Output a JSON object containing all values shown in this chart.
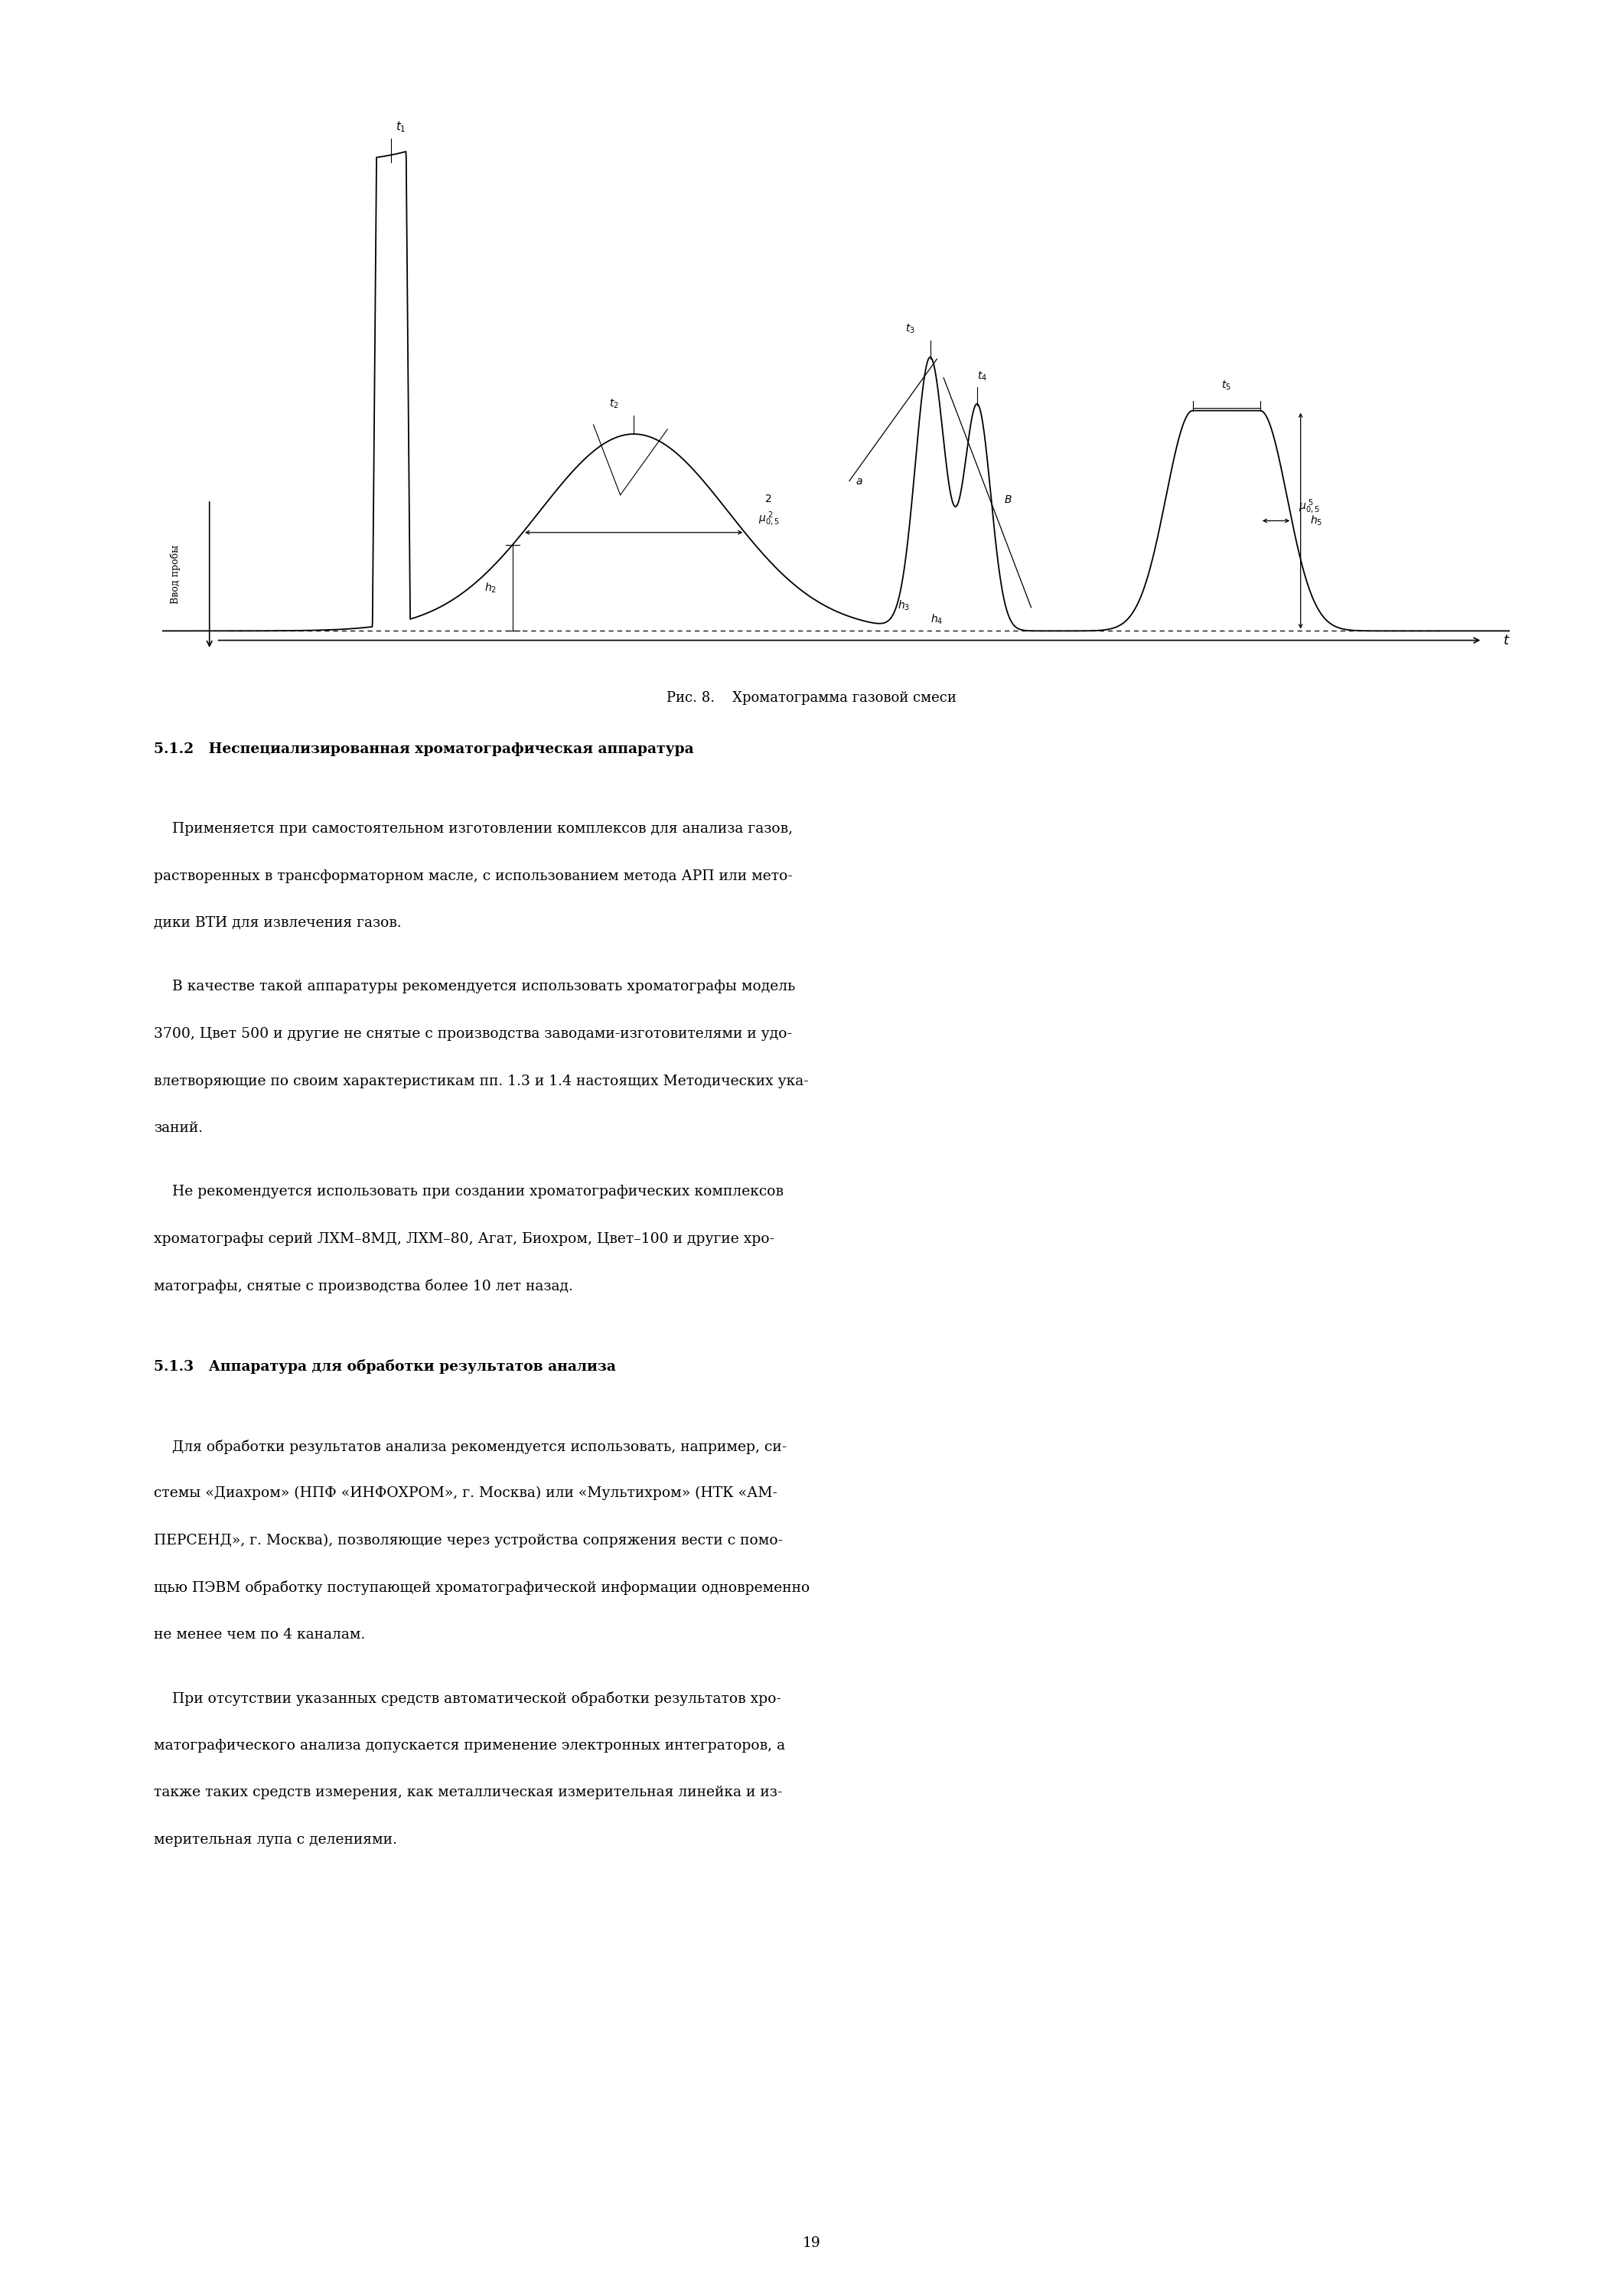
{
  "fig_caption": "Рис. 8.    Хроматограмма газовой смеси",
  "section_512_title": "5.1.2   Неспециализированная хроматографическая аппаратура",
  "section_512_p1_lines": [
    "    Применяется при самостоятельном изготовлении комплексов для анализа газов,",
    "растворенных в трансформаторном масле, с использованием метода АРП или мето-",
    "дики ВТИ для извлечения газов."
  ],
  "section_512_p2_lines": [
    "    В качестве такой аппаратуры рекомендуется использовать хроматографы модель",
    "3700, Цвет 500 и другие не снятые с производства заводами-изготовителями и удо-",
    "влетворяющие по своим характеристикам пп. 1.3 и 1.4 настоящих Методических ука-",
    "заний."
  ],
  "section_512_p3_lines": [
    "    Не рекомендуется использовать при создании хроматографических комплексов",
    "хроматографы серий ЛХМ–8МД, ЛХМ–80, Агат, Биохром, Цвет–100 и другие хро-",
    "матографы, снятые с производства более 10 лет назад."
  ],
  "section_513_title": "5.1.3   Аппаратура для обработки результатов анализа",
  "section_513_p1_lines": [
    "    Для обработки результатов анализа рекомендуется использовать, например, си-",
    "стемы «Диахром» (НПФ «ИНФОХРОМ», г. Москва) или «Мультихром» (НТК «АМ-",
    "ПЕРСЕНД», г. Москва), позволяющие через устройства сопряжения вести с помо-",
    "щью ПЭВМ обработку поступающей хроматографической информации одновременно",
    "не менее чем по 4 каналам."
  ],
  "section_513_p2_lines": [
    "    При отсутствии указанных средств автоматической обработки результатов хро-",
    "матографического анализа допускается применение электронных интеграторов, а",
    "также таких средств измерения, как металлическая измерительная линейка и из-",
    "мерительная лупа с делениями."
  ],
  "page_number": "19",
  "background_color": "#ffffff",
  "text_color": "#000000"
}
